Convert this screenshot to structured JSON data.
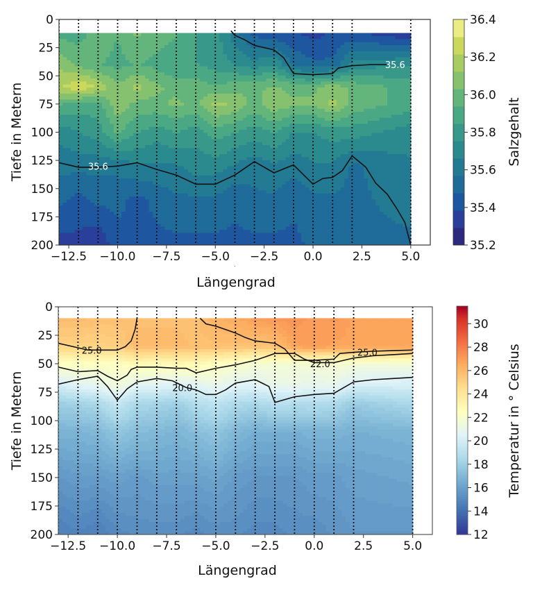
{
  "chart_data": [
    {
      "type": "heatmap",
      "name": "salinity-section",
      "xlabel": "Längengrad",
      "ylabel": "Tiefe in Metern",
      "xlim": [
        -13,
        6
      ],
      "ylim": [
        200,
        0
      ],
      "x_ticks": [
        "−12.5",
        "−10.0",
        "−7.5",
        "−5.0",
        "−2.5",
        "0.0",
        "2.5",
        "5.0"
      ],
      "x_tick_values": [
        -12.5,
        -10.0,
        -7.5,
        -5.0,
        -2.5,
        0.0,
        2.5,
        5.0
      ],
      "y_ticks": [
        "0",
        "25",
        "50",
        "75",
        "100",
        "125",
        "150",
        "175",
        "200"
      ],
      "y_tick_values": [
        0,
        25,
        50,
        75,
        100,
        125,
        150,
        175,
        200
      ],
      "data_top_depth": 12,
      "stations": [
        -13,
        -12,
        -11,
        -10,
        -9,
        -8,
        -7,
        -6,
        -5,
        -4,
        -3,
        -2,
        -1,
        0,
        1,
        2,
        5
      ],
      "colorbar": {
        "label": "Salzgehalt",
        "ticks": [
          "36.4",
          "36.2",
          "36.0",
          "35.8",
          "35.6",
          "35.4",
          "35.2"
        ],
        "tick_values": [
          36.4,
          36.2,
          36.0,
          35.8,
          35.6,
          35.4,
          35.2
        ],
        "range": [
          35.2,
          36.4
        ],
        "levels": [
          35.2,
          35.3,
          35.4,
          35.5,
          35.6,
          35.7,
          35.8,
          35.9,
          36.0,
          36.1,
          36.2,
          36.3,
          36.4
        ],
        "colors": [
          "#2c2a7f",
          "#2a3f9a",
          "#1e56a0",
          "#1f6b99",
          "#227a93",
          "#2a8a8e",
          "#38988a",
          "#4aa884",
          "#63b57b",
          "#85c16f",
          "#a8cc62",
          "#cad85c",
          "#ecec85"
        ]
      },
      "contours": [
        {
          "level": 35.6,
          "label": "35.6",
          "label_pos": [
            -11.0,
            130
          ],
          "points": [
            [
              -13,
              127
            ],
            [
              -12,
              131
            ],
            [
              -11,
              131
            ],
            [
              -10,
              130
            ],
            [
              -9,
              127
            ],
            [
              -8,
              133
            ],
            [
              -7,
              138
            ],
            [
              -6,
              146
            ],
            [
              -5,
              146
            ],
            [
              -4,
              138
            ],
            [
              -3,
              126
            ],
            [
              -2,
              136
            ],
            [
              -1,
              129
            ],
            [
              0,
              146
            ],
            [
              0.5,
              141
            ],
            [
              1,
              140
            ],
            [
              1.5,
              134
            ],
            [
              2,
              121
            ],
            [
              2.7,
              131
            ],
            [
              3.2,
              145
            ],
            [
              3.8,
              155
            ],
            [
              4.3,
              168
            ],
            [
              4.7,
              180
            ],
            [
              5,
              200
            ]
          ]
        },
        {
          "level": 35.6,
          "label": "35.6",
          "label_pos": [
            4.2,
            40
          ],
          "points": [
            [
              -4.2,
              10
            ],
            [
              -4,
              14
            ],
            [
              -3.5,
              18
            ],
            [
              -3,
              23
            ],
            [
              -2,
              27
            ],
            [
              -1.5,
              34
            ],
            [
              -1,
              48
            ],
            [
              0,
              49
            ],
            [
              1,
              48
            ],
            [
              1.3,
              43
            ],
            [
              2,
              41
            ],
            [
              3,
              40
            ],
            [
              3.8,
              40
            ]
          ]
        }
      ],
      "field_stops": [
        {
          "depth": 12,
          "values": [
            35.9,
            35.9,
            36.0,
            35.95,
            36.05,
            36.0,
            35.95,
            35.85,
            35.8,
            35.6,
            35.45,
            35.4,
            35.4,
            35.35,
            35.4,
            35.4,
            35.3
          ]
        },
        {
          "depth": 40,
          "values": [
            36.1,
            36.0,
            35.95,
            35.9,
            35.95,
            35.9,
            35.85,
            35.85,
            35.8,
            35.75,
            35.7,
            35.75,
            35.55,
            35.5,
            35.5,
            35.7,
            35.75
          ]
        },
        {
          "depth": 60,
          "values": [
            36.2,
            36.3,
            36.2,
            36.05,
            36.15,
            36.05,
            36.0,
            36.0,
            35.95,
            36.0,
            36.0,
            36.05,
            36.0,
            36.0,
            36.1,
            36.0,
            35.9
          ]
        },
        {
          "depth": 75,
          "values": [
            35.95,
            35.9,
            35.9,
            36.1,
            36.0,
            36.0,
            36.05,
            36.0,
            36.15,
            36.1,
            36.0,
            36.1,
            36.05,
            36.05,
            36.15,
            36.0,
            35.9
          ]
        },
        {
          "depth": 100,
          "values": [
            35.7,
            35.75,
            35.8,
            35.95,
            35.85,
            35.8,
            35.85,
            35.8,
            35.9,
            35.85,
            35.8,
            35.85,
            35.75,
            35.75,
            35.8,
            35.8,
            35.7
          ]
        },
        {
          "depth": 130,
          "values": [
            35.6,
            35.6,
            35.6,
            35.6,
            35.65,
            35.65,
            35.65,
            35.7,
            35.7,
            35.65,
            35.6,
            35.65,
            35.6,
            35.65,
            35.65,
            35.55,
            35.65
          ]
        },
        {
          "depth": 160,
          "values": [
            35.5,
            35.45,
            35.5,
            35.5,
            35.45,
            35.5,
            35.55,
            35.55,
            35.55,
            35.5,
            35.55,
            35.55,
            35.5,
            35.55,
            35.55,
            35.55,
            35.6
          ]
        },
        {
          "depth": 200,
          "values": [
            35.35,
            35.35,
            35.3,
            35.45,
            35.45,
            35.45,
            35.45,
            35.45,
            35.45,
            35.45,
            35.45,
            35.45,
            35.45,
            35.5,
            35.55,
            35.55,
            35.55
          ]
        }
      ]
    },
    {
      "type": "heatmap",
      "name": "temperature-section",
      "xlabel": "Längengrad",
      "ylabel": "Tiefe in Metern",
      "xlim": [
        -13,
        6
      ],
      "ylim": [
        200,
        0
      ],
      "x_ticks": [
        "−12.5",
        "−10.0",
        "−7.5",
        "−5.0",
        "−2.5",
        "0.0",
        "2.5",
        "5.0"
      ],
      "x_tick_values": [
        -12.5,
        -10.0,
        -7.5,
        -5.0,
        -2.5,
        0.0,
        2.5,
        5.0
      ],
      "y_ticks": [
        "0",
        "25",
        "50",
        "75",
        "100",
        "125",
        "150",
        "175",
        "200"
      ],
      "y_tick_values": [
        0,
        25,
        50,
        75,
        100,
        125,
        150,
        175,
        200
      ],
      "data_top_depth": 10,
      "stations": [
        -13,
        -12,
        -11,
        -10,
        -9,
        -8,
        -7,
        -6,
        -5,
        -4,
        -3,
        -2,
        -1,
        0,
        1,
        2,
        5
      ],
      "colorbar": {
        "label": "Temperatur in ° Celsius",
        "ticks": [
          "30",
          "28",
          "26",
          "24",
          "22",
          "20",
          "18",
          "16",
          "14",
          "12"
        ],
        "tick_values": [
          30,
          28,
          26,
          24,
          22,
          20,
          18,
          16,
          14,
          12
        ],
        "range": [
          12,
          31.5
        ],
        "colors": [
          "#313695",
          "#4575b4",
          "#74add1",
          "#abd9e9",
          "#e0f3f8",
          "#ffffbf",
          "#fee090",
          "#fdae61",
          "#f46d43",
          "#d73027",
          "#a50026"
        ],
        "color_stops": [
          12,
          14.2,
          16.5,
          18.5,
          20.5,
          22.5,
          24.5,
          26.5,
          28.5,
          30.5,
          31.5
        ]
      },
      "contours": [
        {
          "level": 25.0,
          "label": "25.0",
          "label_pos": [
            -11.3,
            38
          ],
          "points": [
            [
              -13,
              32
            ],
            [
              -12,
              36
            ],
            [
              -11.5,
              38
            ],
            [
              -10,
              38
            ],
            [
              -9.6,
              35
            ],
            [
              -9.3,
              30
            ],
            [
              -9.1,
              20
            ],
            [
              -9,
              10
            ]
          ]
        },
        {
          "level": 25.0,
          "label": "25.0",
          "label_pos": [
            2.7,
            40
          ],
          "points": [
            [
              -5.8,
              10
            ],
            [
              -5.5,
              15
            ],
            [
              -5,
              17
            ],
            [
              -4.5,
              20
            ],
            [
              -4,
              23
            ],
            [
              -3.5,
              27
            ],
            [
              -3,
              30
            ],
            [
              -2,
              32
            ],
            [
              -1.5,
              37
            ],
            [
              -1,
              47
            ],
            [
              0,
              47
            ],
            [
              1,
              46
            ],
            [
              1.3,
              41
            ],
            [
              2,
              40
            ],
            [
              3,
              39
            ],
            [
              4,
              38.5
            ],
            [
              5,
              38
            ]
          ]
        },
        {
          "level": 22.0,
          "label": "22.0",
          "label_pos": [
            0.3,
            50
          ],
          "points": [
            [
              -13,
              53
            ],
            [
              -12,
              57
            ],
            [
              -11,
              56
            ],
            [
              -10.5,
              61
            ],
            [
              -10,
              65
            ],
            [
              -9.5,
              60
            ],
            [
              -9.3,
              55
            ],
            [
              -9,
              53
            ],
            [
              -8,
              53
            ],
            [
              -7,
              54
            ],
            [
              -6.5,
              54
            ],
            [
              -6,
              58
            ],
            [
              -5,
              54
            ],
            [
              -4,
              51
            ],
            [
              -3,
              47
            ],
            [
              -2.5,
              44
            ],
            [
              -2,
              41
            ],
            [
              -1,
              41
            ],
            [
              -0.5,
              46
            ],
            [
              0,
              49
            ],
            [
              1,
              49
            ],
            [
              1.5,
              47
            ],
            [
              2,
              45
            ],
            [
              3,
              43
            ],
            [
              4,
              42
            ],
            [
              5,
              41
            ]
          ]
        },
        {
          "level": 20.0,
          "label": "20.0",
          "label_pos": [
            -6.7,
            71
          ],
          "points": [
            [
              -13,
              68
            ],
            [
              -12,
              64
            ],
            [
              -11,
              61
            ],
            [
              -10.5,
              70
            ],
            [
              -10,
              82
            ],
            [
              -9.5,
              72
            ],
            [
              -9,
              66
            ],
            [
              -8,
              63
            ],
            [
              -7.2,
              65
            ],
            [
              -6.5,
              71
            ],
            [
              -6,
              73
            ],
            [
              -5.5,
              77
            ],
            [
              -5,
              77
            ],
            [
              -4.5,
              73
            ],
            [
              -4,
              67
            ],
            [
              -3,
              64
            ],
            [
              -2.3,
              70
            ],
            [
              -2,
              84
            ],
            [
              -1,
              79
            ],
            [
              0,
              77
            ],
            [
              1,
              76
            ],
            [
              1.4,
              72
            ],
            [
              2,
              66
            ],
            [
              3,
              64
            ],
            [
              4,
              63
            ],
            [
              5,
              62
            ]
          ]
        }
      ],
      "field_stops": [
        {
          "depth": 10,
          "values": [
            26.0,
            26.0,
            25.8,
            25.8,
            25.8,
            25.8,
            25.8,
            25.8,
            26.3,
            26.6,
            27.0,
            27.2,
            27.3,
            27.0,
            27.2,
            26.8,
            26.8
          ]
        },
        {
          "depth": 35,
          "values": [
            25.0,
            25.0,
            25.0,
            25.2,
            26.0,
            26.0,
            26.0,
            25.8,
            25.8,
            25.8,
            25.6,
            25.8,
            26.8,
            27.0,
            26.8,
            26.8,
            26.8
          ]
        },
        {
          "depth": 50,
          "values": [
            22.5,
            22.5,
            22.3,
            22.5,
            23.0,
            22.8,
            23.0,
            23.0,
            22.5,
            22.2,
            21.8,
            21.8,
            21.8,
            21.8,
            21.8,
            21.8,
            21.7
          ]
        },
        {
          "depth": 70,
          "values": [
            19.8,
            20.5,
            20.8,
            21.5,
            20.5,
            20.5,
            20.2,
            20.5,
            21.0,
            20.5,
            20.5,
            21.0,
            21.0,
            20.8,
            21.0,
            20.0,
            20.0
          ]
        },
        {
          "depth": 85,
          "values": [
            18.0,
            18.2,
            18.5,
            19.5,
            18.5,
            18.3,
            18.0,
            18.8,
            19.2,
            18.6,
            18.4,
            19.0,
            18.8,
            18.8,
            18.6,
            17.8,
            18.5
          ]
        },
        {
          "depth": 110,
          "values": [
            16.8,
            16.8,
            17.0,
            17.6,
            17.2,
            17.0,
            16.8,
            17.2,
            17.6,
            17.0,
            16.6,
            16.6,
            16.6,
            16.8,
            16.8,
            16.6,
            16.8
          ]
        },
        {
          "depth": 150,
          "values": [
            15.6,
            15.8,
            15.8,
            16.0,
            15.8,
            16.0,
            16.0,
            16.0,
            16.2,
            15.8,
            15.6,
            15.6,
            15.6,
            15.8,
            15.8,
            16.0,
            16.2
          ]
        },
        {
          "depth": 200,
          "values": [
            14.6,
            14.8,
            14.6,
            15.0,
            15.2,
            15.2,
            15.2,
            15.0,
            15.2,
            15.2,
            15.0,
            15.0,
            15.2,
            15.2,
            15.4,
            15.6,
            15.6
          ]
        }
      ]
    }
  ]
}
